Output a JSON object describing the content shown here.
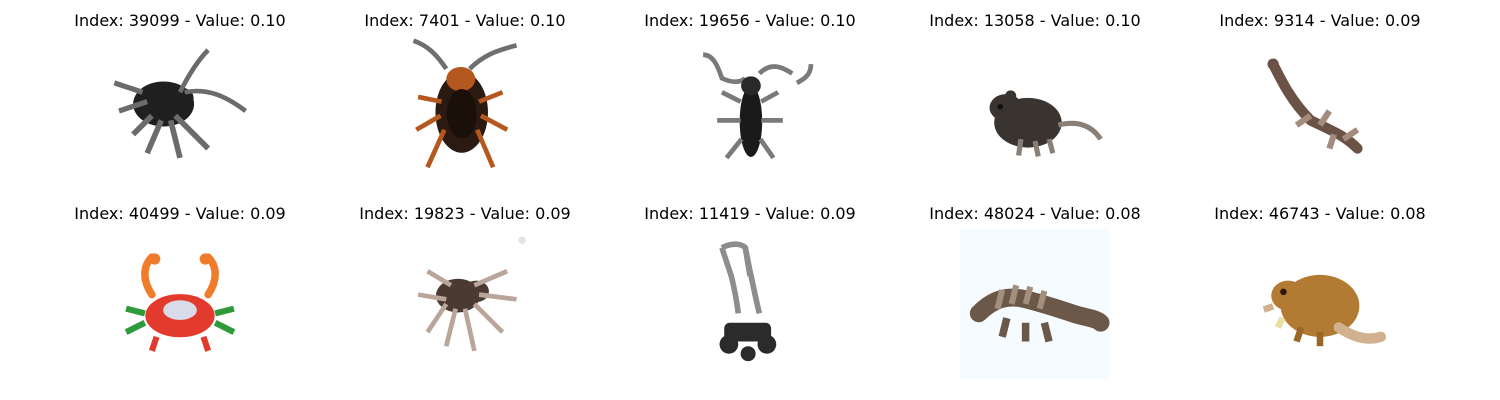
{
  "figure": {
    "items": [
      {
        "title": "Index: 39099 - Value: 0.10",
        "icon": "cockroach-dark-icon",
        "palette": {
          "main": "#1f1f1f",
          "accent": "#6b6b6b",
          "bg": "#ffffff"
        }
      },
      {
        "title": "Index: 7401 - Value: 0.10",
        "icon": "cockroach-brown-icon",
        "palette": {
          "main": "#2a1a12",
          "accent": "#b4581f",
          "bg": "#ffffff"
        }
      },
      {
        "title": "Index: 19656 - Value: 0.10",
        "icon": "beetle-longhorn-icon",
        "palette": {
          "main": "#1a1a1a",
          "accent": "#7a7a7a",
          "bg": "#ffffff"
        }
      },
      {
        "title": "Index: 13058 - Value: 0.10",
        "icon": "rat-icon",
        "palette": {
          "main": "#3a3430",
          "accent": "#8a7f76",
          "bg": "#ffffff"
        }
      },
      {
        "title": "Index: 9314 - Value: 0.09",
        "icon": "lizard-icon",
        "palette": {
          "main": "#6a5247",
          "accent": "#a58a7e",
          "bg": "#ffffff"
        }
      },
      {
        "title": "Index: 40499 - Value: 0.09",
        "icon": "crab-icon",
        "palette": {
          "main": "#e23b2d",
          "accent": "#2f9a3a",
          "bg": "#ffffff"
        }
      },
      {
        "title": "Index: 19823 - Value: 0.09",
        "icon": "spider-icon",
        "palette": {
          "main": "#4b3a32",
          "accent": "#b9a59a",
          "bg": "#ffffff"
        }
      },
      {
        "title": "Index: 11419 - Value: 0.09",
        "icon": "lawn-mower-icon",
        "palette": {
          "main": "#2b2b2b",
          "accent": "#8d8d8d",
          "bg": "#ffffff"
        }
      },
      {
        "title": "Index: 48024 - Value: 0.08",
        "icon": "dinosaur-icon",
        "palette": {
          "main": "#6b5848",
          "accent": "#a28f7c",
          "bg": "#f6fbff"
        }
      },
      {
        "title": "Index: 46743 - Value: 0.08",
        "icon": "beaver-icon",
        "palette": {
          "main": "#b27a33",
          "accent": "#d2b28e",
          "bg": "#ffffff"
        }
      }
    ]
  }
}
